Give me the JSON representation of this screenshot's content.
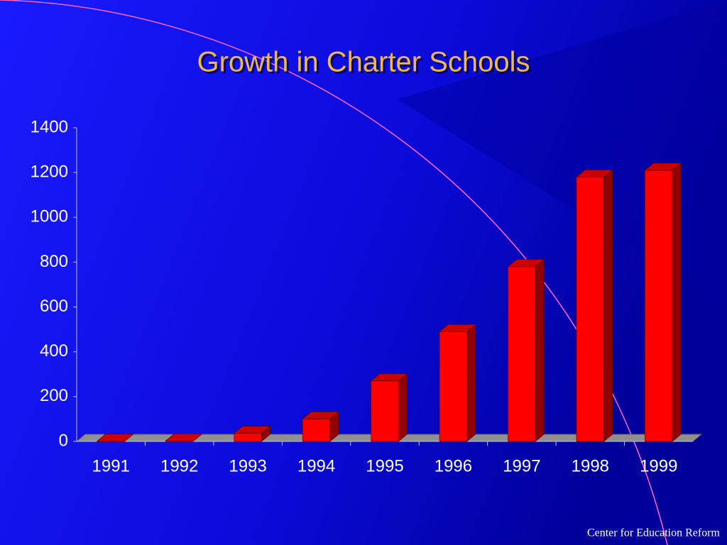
{
  "chart_data": {
    "type": "bar3d",
    "title": "Growth in Charter Schools",
    "categories": [
      "1991",
      "1992",
      "1993",
      "1994",
      "1995",
      "1996",
      "1997",
      "1998",
      "1999"
    ],
    "values": [
      1,
      2,
      36,
      100,
      270,
      490,
      780,
      1180,
      1210
    ],
    "color": "#ff0000",
    "ylim": [
      0,
      1400
    ],
    "yticks": [
      0,
      200,
      400,
      600,
      800,
      1000,
      1200,
      1400
    ],
    "source": "Center for Education Reform"
  }
}
